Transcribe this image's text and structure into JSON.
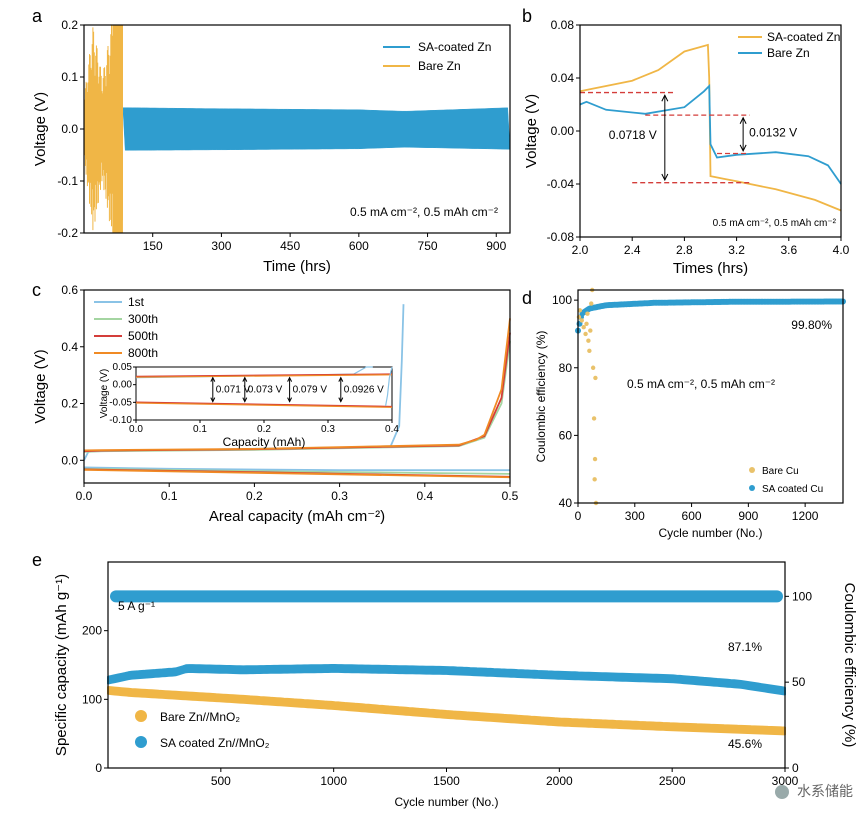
{
  "colors": {
    "blue": "#2f9dcf",
    "orange": "#f0b646",
    "gold": "#e9c26b",
    "red": "#d43d3a",
    "green": "#a4d5a1",
    "orange_line": "#f08a24",
    "lightblue": "#8ac3e6",
    "watermark": "#666666"
  },
  "watermark": {
    "text": "水系储能",
    "icon": "wechat-icon"
  },
  "chart_data": [
    {
      "id": "a",
      "panel_label": "a",
      "type": "line",
      "xlabel": "Time (hrs)",
      "ylabel": "Voltage (V)",
      "xlim": [
        0,
        930
      ],
      "ylim": [
        -0.2,
        0.2
      ],
      "xticks": [
        150,
        300,
        450,
        600,
        750,
        900
      ],
      "yticks": [
        -0.2,
        -0.1,
        0.0,
        0.1,
        0.2
      ],
      "ytick_labels": [
        "-0.2",
        "-0.1",
        "0.0",
        "0.1",
        "0.2"
      ],
      "annotation": "0.5 mA cm⁻², 0.5 mAh cm⁻²",
      "series": [
        {
          "name": "SA-coated Zn",
          "color": "#2f9dcf",
          "x_start": 85,
          "x_end": 930,
          "envelope": [
            [
              85,
              0.041,
              -0.041
            ],
            [
              300,
              0.039,
              -0.04
            ],
            [
              600,
              0.037,
              -0.038
            ],
            [
              700,
              0.034,
              -0.035
            ],
            [
              930,
              0.041,
              -0.039
            ]
          ]
        },
        {
          "name": "Bare Zn",
          "color": "#f0b646",
          "x_start": 0,
          "x_end": 85,
          "envelope": [
            [
              0,
              0.06,
              -0.06
            ],
            [
              20,
              0.2,
              -0.2
            ],
            [
              40,
              0.1,
              -0.1
            ],
            [
              60,
              0.2,
              -0.2
            ],
            [
              85,
              0.2,
              -0.2
            ]
          ]
        }
      ]
    },
    {
      "id": "b",
      "panel_label": "b",
      "type": "line",
      "xlabel": "Times (hrs)",
      "ylabel": "Voltage (V)",
      "xlim": [
        2.0,
        4.0
      ],
      "ylim": [
        -0.08,
        0.08
      ],
      "xticks": [
        2.0,
        2.4,
        2.8,
        3.2,
        3.6,
        4.0
      ],
      "xtick_labels": [
        "2.0",
        "2.4",
        "2.8",
        "3.2",
        "3.6",
        "4.0"
      ],
      "yticks": [
        -0.08,
        -0.04,
        0.0,
        0.04,
        0.08
      ],
      "ytick_labels": [
        "-0.08",
        "-0.04",
        "0.00",
        "0.04",
        "0.08"
      ],
      "annotation": "0.5 mA cm⁻², 0.5 mAh cm⁻²",
      "overpotentials": [
        "0.0718 V",
        "0.0132 V"
      ],
      "series": [
        {
          "name": "SA-coated Zn",
          "color": "#f0b646",
          "x": [
            2.0,
            2.1,
            2.4,
            2.6,
            2.8,
            2.98,
            2.99,
            3.0,
            3.1,
            3.2,
            3.5,
            3.8,
            4.0
          ],
          "y": [
            0.03,
            0.032,
            0.038,
            0.046,
            0.06,
            0.065,
            0.04,
            -0.034,
            -0.036,
            -0.038,
            -0.044,
            -0.052,
            -0.06
          ]
        },
        {
          "name": "Bare Zn",
          "color": "#2f9dcf",
          "x": [
            2.0,
            2.05,
            2.2,
            2.5,
            2.8,
            2.95,
            2.99,
            3.0,
            3.05,
            3.2,
            3.5,
            3.75,
            3.9,
            4.0
          ],
          "y": [
            0.02,
            0.022,
            0.016,
            0.013,
            0.018,
            0.03,
            0.034,
            -0.01,
            -0.02,
            -0.018,
            -0.016,
            -0.019,
            -0.026,
            -0.04
          ]
        }
      ]
    },
    {
      "id": "c",
      "panel_label": "c",
      "type": "line",
      "xlabel": "Areal capacity (mAh cm⁻²)",
      "ylabel": "Voltage (V)",
      "xlim": [
        0,
        0.5
      ],
      "ylim": [
        -0.08,
        0.6
      ],
      "xticks": [
        0.0,
        0.1,
        0.2,
        0.3,
        0.4,
        0.5
      ],
      "xtick_labels": [
        "0.0",
        "0.1",
        "0.2",
        "0.3",
        "0.4",
        "0.5"
      ],
      "yticks": [
        0.0,
        0.2,
        0.4,
        0.6
      ],
      "ytick_labels": [
        "0.0",
        "0.2",
        "0.4",
        "0.6"
      ],
      "series": [
        {
          "name": "1st",
          "color": "#8ac3e6",
          "charge": {
            "x": [
              0,
              0.005,
              0.015,
              0.1,
              0.3,
              0.36,
              0.37,
              0.373,
              0.375
            ],
            "y": [
              0.0,
              0.03,
              0.032,
              0.036,
              0.045,
              0.05,
              0.12,
              0.35,
              0.55
            ]
          },
          "discharge": {
            "x": [
              0,
              0.1,
              0.3,
              0.5
            ],
            "y": [
              -0.025,
              -0.03,
              -0.035,
              -0.035
            ]
          }
        },
        {
          "name": "300th",
          "color": "#a4d5a1",
          "charge": {
            "x": [
              0,
              0.02,
              0.2,
              0.44,
              0.47,
              0.49,
              0.5
            ],
            "y": [
              0.03,
              0.032,
              0.037,
              0.05,
              0.08,
              0.2,
              0.42
            ]
          },
          "discharge": {
            "x": [
              0,
              0.2,
              0.5
            ],
            "y": [
              -0.03,
              -0.038,
              -0.048
            ]
          }
        },
        {
          "name": "500th",
          "color": "#d43d3a",
          "charge": {
            "x": [
              0,
              0.02,
              0.2,
              0.44,
              0.47,
              0.49,
              0.5
            ],
            "y": [
              0.032,
              0.034,
              0.039,
              0.052,
              0.085,
              0.22,
              0.45
            ]
          },
          "discharge": {
            "x": [
              0,
              0.2,
              0.5
            ],
            "y": [
              -0.032,
              -0.042,
              -0.058
            ]
          }
        },
        {
          "name": "800th",
          "color": "#f08a24",
          "charge": {
            "x": [
              0,
              0.02,
              0.2,
              0.44,
              0.46,
              0.47,
              0.49,
              0.5
            ],
            "y": [
              0.035,
              0.036,
              0.04,
              0.055,
              0.072,
              0.09,
              0.25,
              0.5
            ]
          },
          "discharge": {
            "x": [
              0,
              0.2,
              0.5
            ],
            "y": [
              -0.034,
              -0.044,
              -0.06
            ]
          }
        }
      ],
      "inset": {
        "xlabel": "Capacity (mAh)",
        "ylabel": "Voltage (V)",
        "xlim": [
          0,
          0.4
        ],
        "ylim": [
          -0.1,
          0.05
        ],
        "xticks": [
          0.0,
          0.1,
          0.2,
          0.3,
          0.4
        ],
        "xtick_labels": [
          "0.0",
          "0.1",
          "0.2",
          "0.3",
          "0.4"
        ],
        "yticks": [
          0.05,
          0.0,
          -0.05,
          -0.1
        ],
        "ytick_labels": [
          "0.05",
          "0.00",
          "-0.05",
          "-0.10"
        ],
        "overpotentials": [
          "0.071 V",
          "0.073 V",
          "0.079 V",
          "0.0926 V"
        ],
        "overpotential_x": [
          0.12,
          0.17,
          0.24,
          0.32
        ]
      }
    },
    {
      "id": "d",
      "panel_label": "d",
      "type": "scatter",
      "xlabel": "Cycle number (No.)",
      "ylabel": "Coulombic efficiency (%)",
      "xlim": [
        0,
        1400
      ],
      "ylim": [
        40,
        103
      ],
      "xticks": [
        0,
        300,
        600,
        900,
        1200
      ],
      "yticks": [
        40,
        60,
        80,
        100
      ],
      "annotation": "0.5 mA cm⁻², 0.5 mAh cm⁻²",
      "average_label": "99.80%",
      "series": [
        {
          "name": "Bare Cu",
          "color": "#e9c26b",
          "x": [
            5,
            10,
            20,
            30,
            40,
            45,
            50,
            55,
            60,
            65,
            70,
            75,
            80,
            85,
            90,
            95,
            88,
            92
          ],
          "y": [
            95,
            97,
            94,
            92,
            90,
            93,
            96,
            88,
            85,
            91,
            99,
            103,
            80,
            65,
            53,
            40,
            47,
            77
          ]
        },
        {
          "name": "SA coated Cu",
          "color": "#2f9dcf",
          "trend": {
            "x": [
              0,
              20,
              60,
              150,
              400,
              800,
              1400
            ],
            "y": [
              91,
              96,
              97.5,
              98.5,
              99.2,
              99.5,
              99.6
            ]
          }
        }
      ]
    },
    {
      "id": "e",
      "panel_label": "e",
      "type": "scatter",
      "xlabel": "Cycle number (No.)",
      "ylabel": "Specific capacity (mAh g⁻¹)",
      "ylabel_right": "Coulombic efficiency (%)",
      "xlim": [
        0,
        3000
      ],
      "ylim": [
        0,
        300
      ],
      "ylim_right": [
        0,
        120
      ],
      "xticks": [
        500,
        1000,
        1500,
        2000,
        2500,
        3000
      ],
      "yticks": [
        0,
        100,
        200
      ],
      "yticks_right": [
        0,
        50,
        100
      ],
      "rate_label": "5 A g⁻¹",
      "retention_labels": [
        "87.1%",
        "45.6%"
      ],
      "series": [
        {
          "name": "Bare Zn//MnO₂",
          "color": "#f0b646",
          "x": [
            0,
            100,
            300,
            600,
            1000,
            1500,
            2000,
            2500,
            3000
          ],
          "y": [
            113,
            110,
            106,
            100,
            91,
            78,
            67,
            60,
            54
          ]
        },
        {
          "name": "SA coated Zn//MnO₂",
          "color": "#2f9dcf",
          "x": [
            0,
            100,
            300,
            350,
            600,
            1000,
            1500,
            2000,
            2500,
            2800,
            3000
          ],
          "y": [
            128,
            135,
            140,
            145,
            143,
            145,
            142,
            135,
            130,
            122,
            112
          ]
        },
        {
          "name": "Coulombic efficiency",
          "color": "#2f9dcf",
          "axis": "right",
          "x": [
            0,
            3000
          ],
          "y": [
            100,
            100
          ]
        }
      ]
    }
  ]
}
